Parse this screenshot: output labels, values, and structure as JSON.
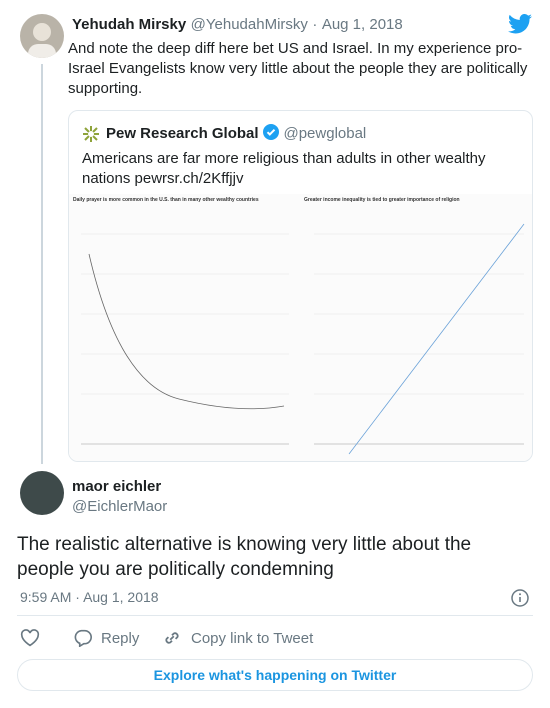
{
  "tweet": {
    "author": {
      "name": "Yehudah Mirsky",
      "handle": "@YehudahMirsky"
    },
    "date": "Aug 1, 2018",
    "text": "And note the deep diff here bet US and Israel. In my experience pro-Israel Evangelists know very little about the people they are politically supporting."
  },
  "separator": "·",
  "quoted_tweet": {
    "author": {
      "name": "Pew Research Global",
      "handle": "@pewglobal"
    },
    "text": "Americans are far more religious than adults in other wealthy nations pewrsr.ch/2Kffjjv",
    "image": {
      "left_title": "Daily prayer is more common in the U.S. than in many other wealthy countries",
      "right_title": "Greater income inequality is tied to greater importance of religion"
    }
  },
  "reply": {
    "author": {
      "name": "maor eichler",
      "handle": "@EichlerMaor"
    },
    "text": "The realistic alternative is knowing very little about the people you are politically condemning",
    "time": "9:59 AM",
    "date": "Aug 1, 2018"
  },
  "actions": {
    "reply": "Reply",
    "copy": "Copy link to Tweet",
    "explore": "Explore what's happening on Twitter"
  }
}
